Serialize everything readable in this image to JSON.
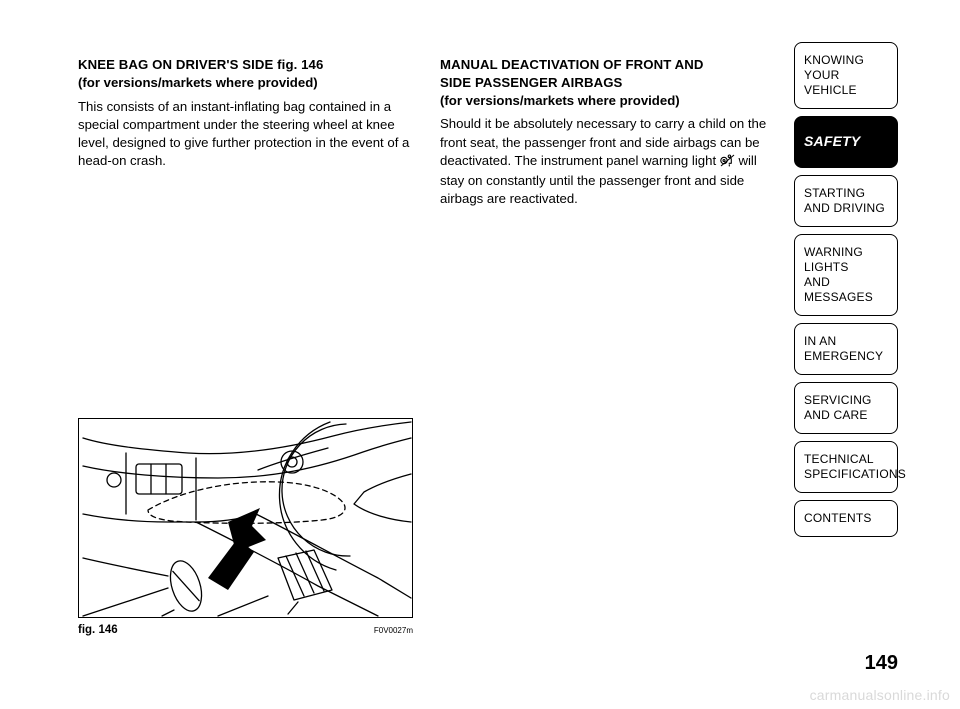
{
  "left": {
    "heading": "KNEE BAG ON DRIVER'S SIDE fig. 146",
    "subheading": "(for versions/markets where provided)",
    "body": "This consists of an instant-inflating bag contained in a special compartment under the steering wheel at knee level, designed to give further protection in the event of a head-on crash."
  },
  "right": {
    "heading1": "MANUAL DEACTIVATION OF FRONT AND",
    "heading2": "SIDE PASSENGER AIRBAGS",
    "subheading": "(for versions/markets where provided)",
    "body_a": "Should it be absolutely necessary to carry a child on the front seat, the passenger front and side airbags can be deactivated. The instrument panel warning light ",
    "body_b": " will stay on constantly until the passenger front and side airbags are reactivated.",
    "icon_name": "passenger-airbag-off-icon"
  },
  "figure": {
    "label": "fig. 146",
    "code": "F0V0027m",
    "alt": "knee-bag-location-illustration",
    "stroke": "#000000",
    "bg": "#ffffff",
    "arrow_fill": "#000000"
  },
  "tabs": {
    "items": [
      {
        "label": "KNOWING\nYOUR\nVEHICLE",
        "active": false
      },
      {
        "label": "SAFETY",
        "active": true
      },
      {
        "label": "STARTING\nAND DRIVING",
        "active": false
      },
      {
        "label": "WARNING LIGHTS\nAND MESSAGES",
        "active": false
      },
      {
        "label": "IN AN\nEMERGENCY",
        "active": false
      },
      {
        "label": "SERVICING\nAND CARE",
        "active": false
      },
      {
        "label": "TECHNICAL\nSPECIFICATIONS",
        "active": false
      },
      {
        "label": "CONTENTS",
        "active": false
      }
    ]
  },
  "page_number": "149",
  "watermark": "carmanualsonline.info"
}
